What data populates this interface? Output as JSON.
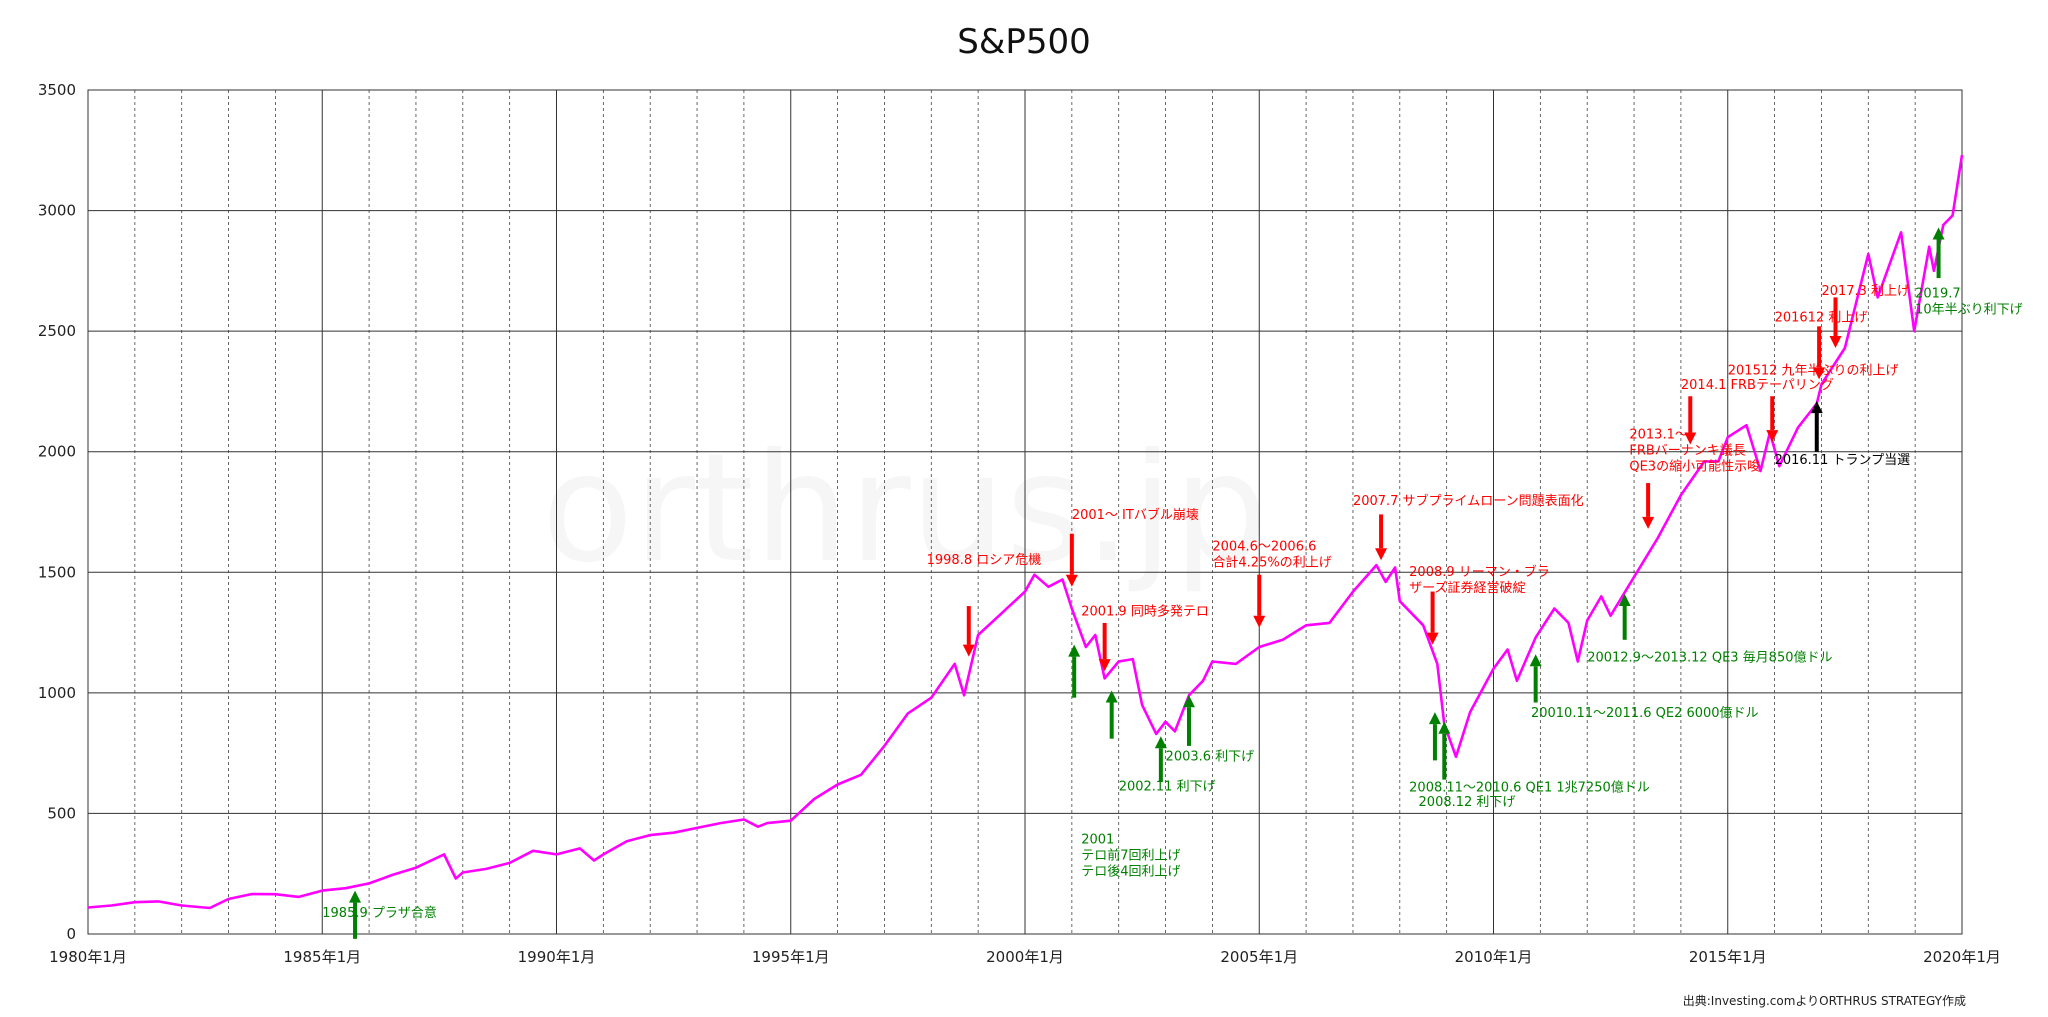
{
  "chart_data": {
    "type": "line",
    "title": "S&P500",
    "ylim": [
      0,
      3500
    ],
    "yticks": [
      0,
      500,
      1000,
      1500,
      2000,
      2500,
      3000,
      3500
    ],
    "xlim": [
      1980.0,
      2020.0
    ],
    "xticks": [
      {
        "x": 1980.0,
        "label": "1980年1月"
      },
      {
        "x": 1985.0,
        "label": "1985年1月"
      },
      {
        "x": 1990.0,
        "label": "1990年1月"
      },
      {
        "x": 1995.0,
        "label": "1995年1月"
      },
      {
        "x": 2000.0,
        "label": "2000年1月"
      },
      {
        "x": 2005.0,
        "label": "2005年1月"
      },
      {
        "x": 2010.0,
        "label": "2010年1月"
      },
      {
        "x": 2015.0,
        "label": "2015年1月"
      },
      {
        "x": 2020.0,
        "label": "2020年1月"
      }
    ],
    "grid": {
      "major_y": true,
      "major_x": true,
      "minor_x_dashed_yearly": true
    },
    "series": [
      {
        "color": "#ff00ff",
        "points": [
          [
            1980.0,
            110
          ],
          [
            1980.5,
            118
          ],
          [
            1981.0,
            132
          ],
          [
            1981.5,
            135
          ],
          [
            1982.0,
            118
          ],
          [
            1982.6,
            108
          ],
          [
            1983.0,
            145
          ],
          [
            1983.5,
            166
          ],
          [
            1984.0,
            165
          ],
          [
            1984.5,
            154
          ],
          [
            1985.0,
            180
          ],
          [
            1985.5,
            190
          ],
          [
            1986.0,
            210
          ],
          [
            1986.5,
            245
          ],
          [
            1987.0,
            275
          ],
          [
            1987.6,
            330
          ],
          [
            1987.85,
            230
          ],
          [
            1988.0,
            255
          ],
          [
            1988.5,
            270
          ],
          [
            1989.0,
            295
          ],
          [
            1989.5,
            345
          ],
          [
            1990.0,
            330
          ],
          [
            1990.5,
            355
          ],
          [
            1990.8,
            305
          ],
          [
            1991.0,
            330
          ],
          [
            1991.5,
            385
          ],
          [
            1992.0,
            410
          ],
          [
            1992.5,
            420
          ],
          [
            1993.0,
            440
          ],
          [
            1993.5,
            460
          ],
          [
            1994.0,
            475
          ],
          [
            1994.3,
            445
          ],
          [
            1994.5,
            460
          ],
          [
            1995.0,
            470
          ],
          [
            1995.5,
            560
          ],
          [
            1996.0,
            620
          ],
          [
            1996.5,
            660
          ],
          [
            1997.0,
            780
          ],
          [
            1997.5,
            915
          ],
          [
            1998.0,
            980
          ],
          [
            1998.5,
            1120
          ],
          [
            1998.7,
            990
          ],
          [
            1999.0,
            1240
          ],
          [
            1999.5,
            1330
          ],
          [
            2000.0,
            1420
          ],
          [
            2000.2,
            1490
          ],
          [
            2000.5,
            1440
          ],
          [
            2000.8,
            1470
          ],
          [
            2001.0,
            1350
          ],
          [
            2001.3,
            1190
          ],
          [
            2001.5,
            1240
          ],
          [
            2001.7,
            1060
          ],
          [
            2002.0,
            1130
          ],
          [
            2002.3,
            1140
          ],
          [
            2002.5,
            950
          ],
          [
            2002.8,
            830
          ],
          [
            2003.0,
            880
          ],
          [
            2003.2,
            840
          ],
          [
            2003.5,
            990
          ],
          [
            2003.8,
            1050
          ],
          [
            2004.0,
            1130
          ],
          [
            2004.5,
            1120
          ],
          [
            2005.0,
            1190
          ],
          [
            2005.5,
            1220
          ],
          [
            2006.0,
            1280
          ],
          [
            2006.5,
            1290
          ],
          [
            2007.0,
            1420
          ],
          [
            2007.5,
            1530
          ],
          [
            2007.7,
            1460
          ],
          [
            2007.9,
            1520
          ],
          [
            2008.0,
            1380
          ],
          [
            2008.5,
            1280
          ],
          [
            2008.8,
            1120
          ],
          [
            2008.95,
            870
          ],
          [
            2009.2,
            735
          ],
          [
            2009.5,
            920
          ],
          [
            2010.0,
            1100
          ],
          [
            2010.3,
            1180
          ],
          [
            2010.5,
            1050
          ],
          [
            2010.9,
            1230
          ],
          [
            2011.3,
            1350
          ],
          [
            2011.6,
            1290
          ],
          [
            2011.8,
            1130
          ],
          [
            2012.0,
            1300
          ],
          [
            2012.3,
            1400
          ],
          [
            2012.5,
            1320
          ],
          [
            2013.0,
            1480
          ],
          [
            2013.5,
            1640
          ],
          [
            2014.0,
            1820
          ],
          [
            2014.5,
            1960
          ],
          [
            2014.8,
            1960
          ],
          [
            2015.0,
            2060
          ],
          [
            2015.4,
            2110
          ],
          [
            2015.7,
            1920
          ],
          [
            2015.9,
            2080
          ],
          [
            2016.1,
            1940
          ],
          [
            2016.5,
            2100
          ],
          [
            2016.9,
            2200
          ],
          [
            2017.0,
            2280
          ],
          [
            2017.5,
            2430
          ],
          [
            2018.0,
            2820
          ],
          [
            2018.2,
            2640
          ],
          [
            2018.7,
            2910
          ],
          [
            2018.98,
            2500
          ],
          [
            2019.3,
            2850
          ],
          [
            2019.4,
            2750
          ],
          [
            2019.6,
            2940
          ],
          [
            2019.8,
            2980
          ],
          [
            2020.0,
            3230
          ]
        ]
      }
    ],
    "annotations": [
      {
        "label": "1985.9 プラザ合意",
        "color": "#008000",
        "arrow": "up",
        "x": 1985.7,
        "arrow_top": 180,
        "arrow_bottom": -20,
        "text_x": 1985.0,
        "text_y": 70,
        "lines": [
          "1985.9 プラザ合意"
        ]
      },
      {
        "label": "1998.8 ロシア危機",
        "color": "#ff0000",
        "arrow": "down",
        "x": 1998.8,
        "arrow_top": 1360,
        "arrow_bottom": 1150,
        "text_x": 1997.9,
        "text_y": 1535,
        "lines": [
          "1998.8 ロシア危機"
        ]
      },
      {
        "label": "2001～ ITバブル崩壊",
        "color": "#ff0000",
        "arrow": "down",
        "x": 2001.0,
        "arrow_top": 1660,
        "arrow_bottom": 1440,
        "text_x": 2001.0,
        "text_y": 1720,
        "lines": [
          "2001～ ITバブル崩壊"
        ]
      },
      {
        "label": "2001.9 同時多発テロ",
        "color": "#ff0000",
        "arrow": "down",
        "x": 2001.7,
        "arrow_top": 1290,
        "arrow_bottom": 1090,
        "text_x": 2001.2,
        "text_y": 1320,
        "lines": [
          "2001.9 同時多発テロ"
        ]
      },
      {
        "label": "2001 テロ前7回利上げ テロ後4回利上げ",
        "color": "#008000",
        "arrow": "up",
        "x": 2001.05,
        "arrow_top": 1200,
        "arrow_bottom": 980,
        "text_x": 2001.2,
        "text_y": 375,
        "lines": [
          "2001",
          "テロ前7回利上げ",
          "テロ後4回利上げ"
        ]
      },
      {
        "label": "2001 second arrow",
        "color": "#008000",
        "arrow": "up",
        "x": 2001.85,
        "arrow_top": 1010,
        "arrow_bottom": 810,
        "text_x": null,
        "text_y": null,
        "lines": []
      },
      {
        "label": "2002.11 利下げ",
        "color": "#008000",
        "arrow": "up",
        "x": 2002.9,
        "arrow_top": 820,
        "arrow_bottom": 630,
        "text_x": 2002.0,
        "text_y": 595,
        "lines": [
          "2002.11 利下げ"
        ]
      },
      {
        "label": "2003.6 利下げ",
        "color": "#008000",
        "arrow": "up",
        "x": 2003.5,
        "arrow_top": 990,
        "arrow_bottom": 780,
        "text_x": 2003.0,
        "text_y": 720,
        "lines": [
          "2003.6 利下げ"
        ]
      },
      {
        "label": "2004.6～2006.6 合計4.25%の利上げ",
        "color": "#ff0000",
        "arrow": "down",
        "x": 2005.0,
        "arrow_top": 1490,
        "arrow_bottom": 1270,
        "text_x": 2004.0,
        "text_y": 1590,
        "lines": [
          "2004.6～2006.6",
          "合計4.25%の利上げ"
        ]
      },
      {
        "label": "2007.7 サブプライムローン問題表面化",
        "color": "#ff0000",
        "arrow": "down",
        "x": 2007.6,
        "arrow_top": 1740,
        "arrow_bottom": 1550,
        "text_x": 2007.0,
        "text_y": 1780,
        "lines": [
          "2007.7 サブプライムローン問題表面化"
        ]
      },
      {
        "label": "2008.9 リーマン・ブラザーズ証券経営破綻",
        "color": "#ff0000",
        "arrow": "down",
        "x": 2008.7,
        "arrow_top": 1420,
        "arrow_bottom": 1200,
        "text_x": 2008.2,
        "text_y": 1485,
        "lines": [
          "2008.9 リーマン・ブラ",
          "ザーズ証券経営破綻"
        ]
      },
      {
        "label": "2008.11～2010.6 QE1 1兆7250億ドル",
        "color": "#008000",
        "arrow": "up",
        "x": 2008.75,
        "arrow_top": 920,
        "arrow_bottom": 720,
        "text_x": 2008.2,
        "text_y": 590,
        "lines": [
          "2008.11～2010.6 QE1 1兆7250億ドル"
        ]
      },
      {
        "label": "2008.12 利下げ",
        "color": "#008000",
        "arrow": "up",
        "x": 2008.95,
        "arrow_top": 880,
        "arrow_bottom": 640,
        "text_x": 2008.4,
        "text_y": 530,
        "lines": [
          "2008.12 利下げ"
        ]
      },
      {
        "label": "20010.11～2011.6 QE2 6000億ドル",
        "color": "#008000",
        "arrow": "up",
        "x": 2010.9,
        "arrow_top": 1160,
        "arrow_bottom": 960,
        "text_x": 2010.8,
        "text_y": 900,
        "lines": [
          "20010.11～2011.6 QE2 6000億ドル"
        ]
      },
      {
        "label": "20012.9～2013.12 QE3 毎月850億ドル",
        "color": "#008000",
        "arrow": "up",
        "x": 2012.8,
        "arrow_top": 1410,
        "arrow_bottom": 1220,
        "text_x": 2012.0,
        "text_y": 1130,
        "lines": [
          "20012.9～2013.12 QE3 毎月850億ドル"
        ]
      },
      {
        "label": "2013.1～ FRBバーナンキ議長 QE3の縮小可能性示唆",
        "color": "#ff0000",
        "arrow": "down",
        "x": 2013.3,
        "arrow_top": 1870,
        "arrow_bottom": 1680,
        "text_x": 2012.9,
        "text_y": 2055,
        "lines": [
          "2013.1～",
          "FRBバーナンキ議長",
          "QE3の縮小可能性示唆"
        ]
      },
      {
        "label": "2014.1 FRBテーパリング",
        "color": "#ff0000",
        "arrow": "down",
        "x": 2014.2,
        "arrow_top": 2230,
        "arrow_bottom": 2030,
        "text_x": 2014.0,
        "text_y": 2260,
        "lines": [
          "2014.1 FRBテーパリング"
        ]
      },
      {
        "label": "201512 九年半ぶりの利上げ",
        "color": "#ff0000",
        "arrow": "down",
        "x": 2015.95,
        "arrow_top": 2230,
        "arrow_bottom": 2040,
        "text_x": 2015.0,
        "text_y": 2320,
        "lines": [
          "201512 九年半ぶりの利上げ"
        ]
      },
      {
        "label": "2016.11 トランプ当選",
        "color": "#000000",
        "arrow": "up",
        "x": 2016.9,
        "arrow_top": 2210,
        "arrow_bottom": 2000,
        "text_x": 2016.0,
        "text_y": 1950,
        "lines": [
          "2016.11 トランプ当選"
        ]
      },
      {
        "label": "201612 利上げ",
        "color": "#ff0000",
        "arrow": "down",
        "x": 2016.95,
        "arrow_top": 2520,
        "arrow_bottom": 2300,
        "text_x": 2016.0,
        "text_y": 2540,
        "lines": [
          "201612 利上げ"
        ]
      },
      {
        "label": "2017.3 利上げ",
        "color": "#ff0000",
        "arrow": "down",
        "x": 2017.3,
        "arrow_top": 2640,
        "arrow_bottom": 2430,
        "text_x": 2017.0,
        "text_y": 2650,
        "lines": [
          "2017.3 利上げ"
        ]
      },
      {
        "label": "2019.7 10年半ぶり利下げ",
        "color": "#008000",
        "arrow": "up",
        "x": 2019.5,
        "arrow_top": 2930,
        "arrow_bottom": 2720,
        "text_x": 2019.0,
        "text_y": 2640,
        "lines": [
          "2019.7",
          "10年半ぶり利下げ"
        ]
      }
    ],
    "watermark": "orthrus.jp",
    "source": "出典:Investing.comよりORTHRUS STRATEGY作成"
  }
}
